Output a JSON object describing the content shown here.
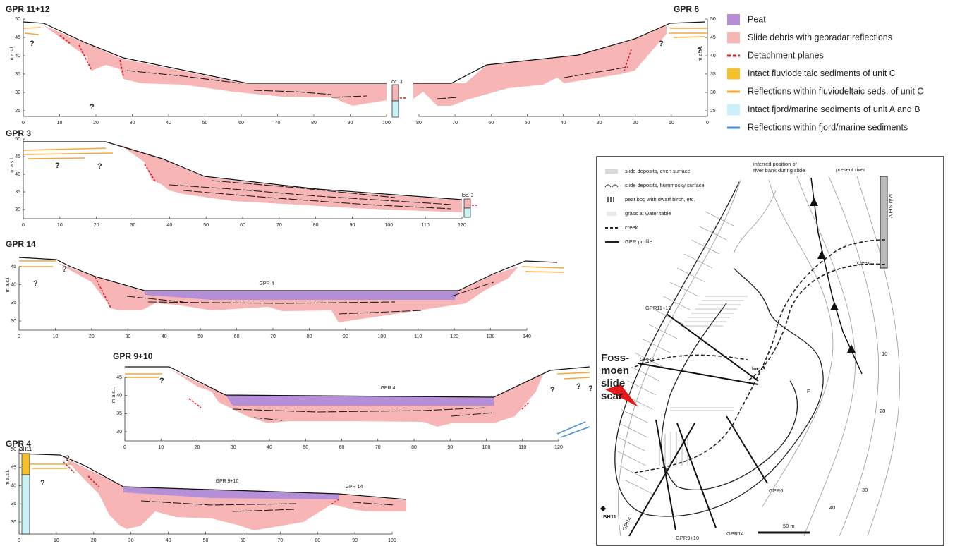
{
  "question_mark": "?",
  "y_axis_label": "m a.s.l.",
  "profiles": [
    {
      "title": "GPR 11+12",
      "xticks": [
        0,
        10,
        20,
        30,
        40,
        50,
        60,
        70,
        80,
        90,
        100
      ],
      "yticks": [
        25,
        30,
        35,
        40,
        45,
        50
      ],
      "annotations": [
        "loc. 3"
      ]
    },
    {
      "title": "GPR 6",
      "xticks": [
        80,
        70,
        60,
        50,
        40,
        30,
        20,
        10,
        0
      ],
      "yticks": [
        25,
        30,
        35,
        40,
        45,
        50
      ],
      "annotations": []
    },
    {
      "title": "GPR 3",
      "xticks": [
        0,
        10,
        20,
        30,
        40,
        50,
        60,
        70,
        80,
        90,
        100,
        110,
        120
      ],
      "yticks": [
        30,
        35,
        40,
        45,
        50
      ],
      "annotations": [
        "loc. 3"
      ]
    },
    {
      "title": "GPR 14",
      "xticks": [
        0,
        10,
        20,
        30,
        40,
        50,
        60,
        70,
        80,
        90,
        100,
        110,
        120,
        130,
        140
      ],
      "yticks": [
        30,
        35,
        40,
        45
      ],
      "annotations": [
        "GPR 4"
      ]
    },
    {
      "title": "GPR 9+10",
      "xticks": [
        0,
        10,
        20,
        30,
        40,
        50,
        60,
        70,
        80,
        90,
        100,
        110,
        120
      ],
      "yticks": [
        30,
        35,
        40,
        45
      ],
      "annotations": [
        "GPR 4"
      ]
    },
    {
      "title": "GPR 4",
      "xticks": [
        0,
        10,
        20,
        30,
        40,
        50,
        60,
        70,
        80,
        90,
        100
      ],
      "yticks": [
        30,
        35,
        40,
        45,
        50
      ],
      "annotations": [
        "BH11",
        "GPR 9+10",
        "GPR 14"
      ]
    }
  ],
  "legend": [
    {
      "label": "Peat",
      "color": "#b58fd8",
      "style": "fill"
    },
    {
      "label": "Slide debris with georadar reflections",
      "color": "#f7b5b5",
      "style": "fill"
    },
    {
      "label": "Detachment planes",
      "color": "#e3191c",
      "style": "dash"
    },
    {
      "label": "Intact fluviodeltaic sediments of unit C",
      "color": "#f6c02c",
      "style": "fill"
    },
    {
      "label": "Reflections within fluviodeltaic seds. of unit C",
      "color": "#f4a83c",
      "style": "line"
    },
    {
      "label": "Intact fjord/marine sediments of unit A and B",
      "color": "#c8f2f5",
      "style": "fill"
    },
    {
      "label": "Reflections within fjord/marine sediments",
      "color": "#4b8fdc",
      "style": "line"
    }
  ],
  "map": {
    "legend": [
      "slide deposits, even surface",
      "slide deposits, hummocky surface",
      "peat bog with dwarf birch, etc.",
      "grass at water table",
      "creek",
      "GPR profile"
    ],
    "labels": [
      "inferred position of",
      "river bank during slide",
      "present river",
      "MÅLSELV",
      "creek",
      "GPR11+12",
      "GPR3",
      "loc. 3",
      "F",
      "10",
      "20",
      "30",
      "40",
      "GPR6",
      "GPR14",
      "GPR9+10",
      "GPR4",
      "BH11",
      "50 m"
    ],
    "scar_label": [
      "Foss-",
      "moen",
      "slide",
      "scar"
    ]
  }
}
